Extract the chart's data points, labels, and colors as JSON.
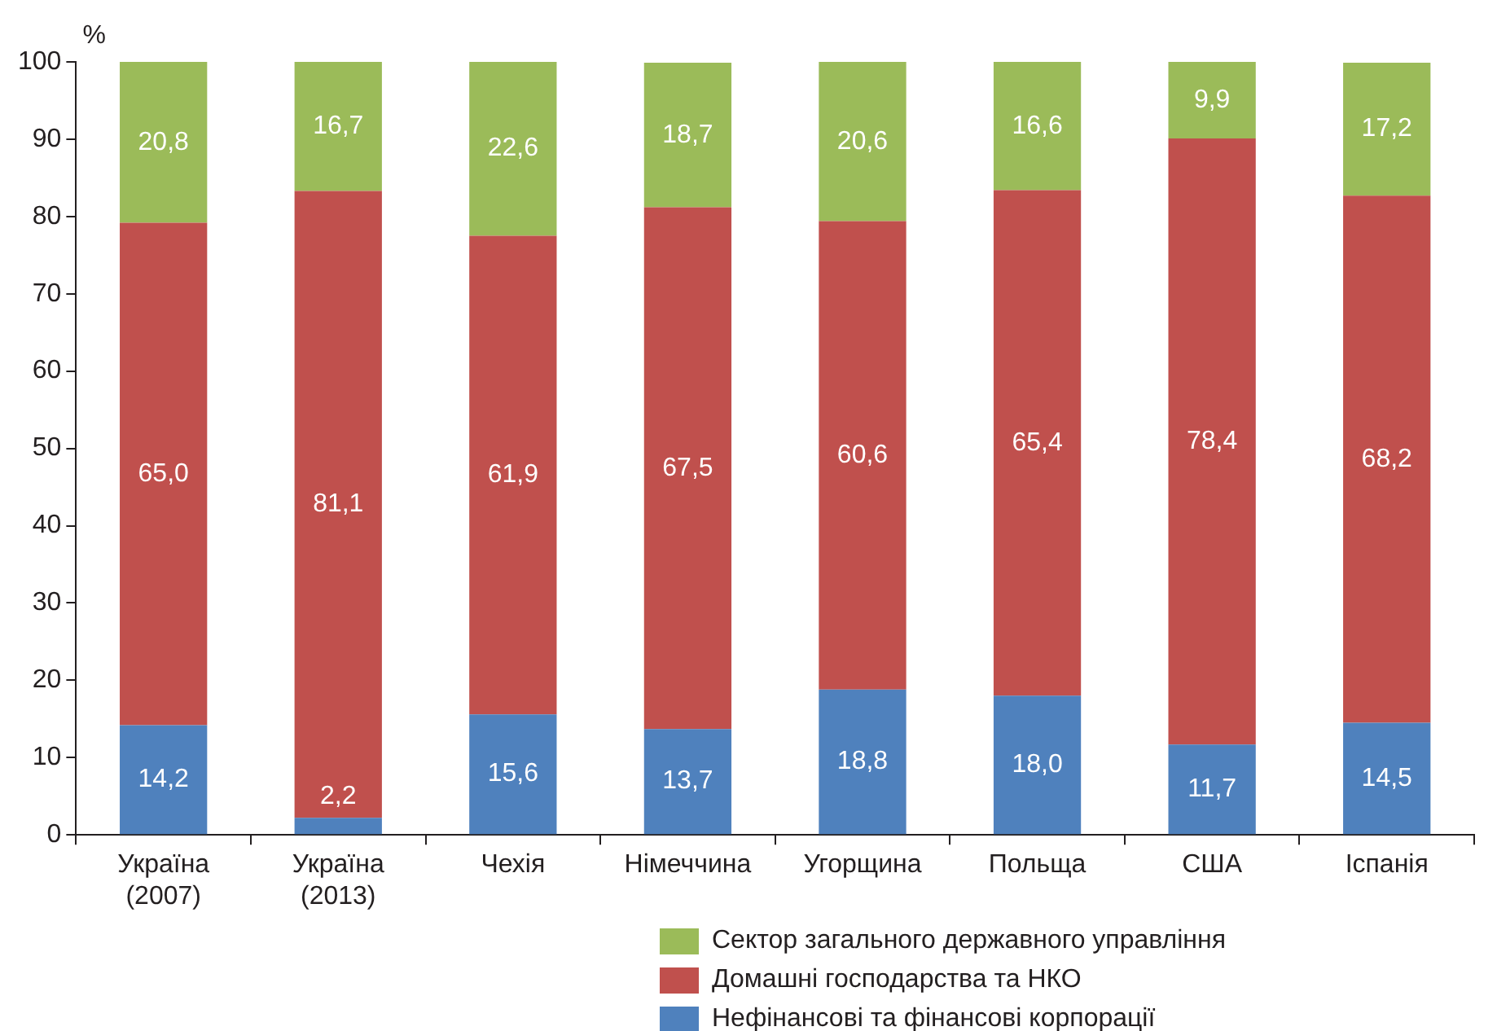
{
  "chart_data": {
    "type": "bar",
    "stacked": true,
    "ylabel": "%",
    "categories": [
      "Україна (2007)",
      "Україна (2013)",
      "Чехія",
      "Німеччина",
      "Угорщина",
      "Польща",
      "США",
      "Іспанія"
    ],
    "series": [
      {
        "name": "Нефінансові та фінансові корпорації",
        "color": "#4f81bd",
        "values": [
          14.2,
          2.2,
          15.6,
          13.7,
          18.8,
          18.0,
          11.7,
          14.5
        ],
        "value_labels": [
          "14,2",
          "2,2",
          "15,6",
          "13,7",
          "18,8",
          "18,0",
          "11,7",
          "14,5"
        ]
      },
      {
        "name": "Домашні господарства та НКО",
        "color": "#c0504d",
        "values": [
          65.0,
          81.1,
          61.9,
          67.5,
          60.6,
          65.4,
          78.4,
          68.2
        ],
        "value_labels": [
          "65,0",
          "81,1",
          "61,9",
          "67,5",
          "60,6",
          "65,4",
          "78,4",
          "68,2"
        ]
      },
      {
        "name": "Сектор загального державного управління",
        "color": "#9bbb59",
        "values": [
          20.8,
          16.7,
          22.6,
          18.7,
          20.6,
          16.6,
          9.9,
          17.2
        ],
        "value_labels": [
          "20,8",
          "16,7",
          "22,6",
          "18,7",
          "20,6",
          "16,6",
          "9,9",
          "17,2"
        ]
      }
    ],
    "ylim": [
      0,
      100
    ],
    "yticks": [
      0,
      10,
      20,
      30,
      40,
      50,
      60,
      70,
      80,
      90,
      100
    ],
    "legend": "bottom right"
  }
}
